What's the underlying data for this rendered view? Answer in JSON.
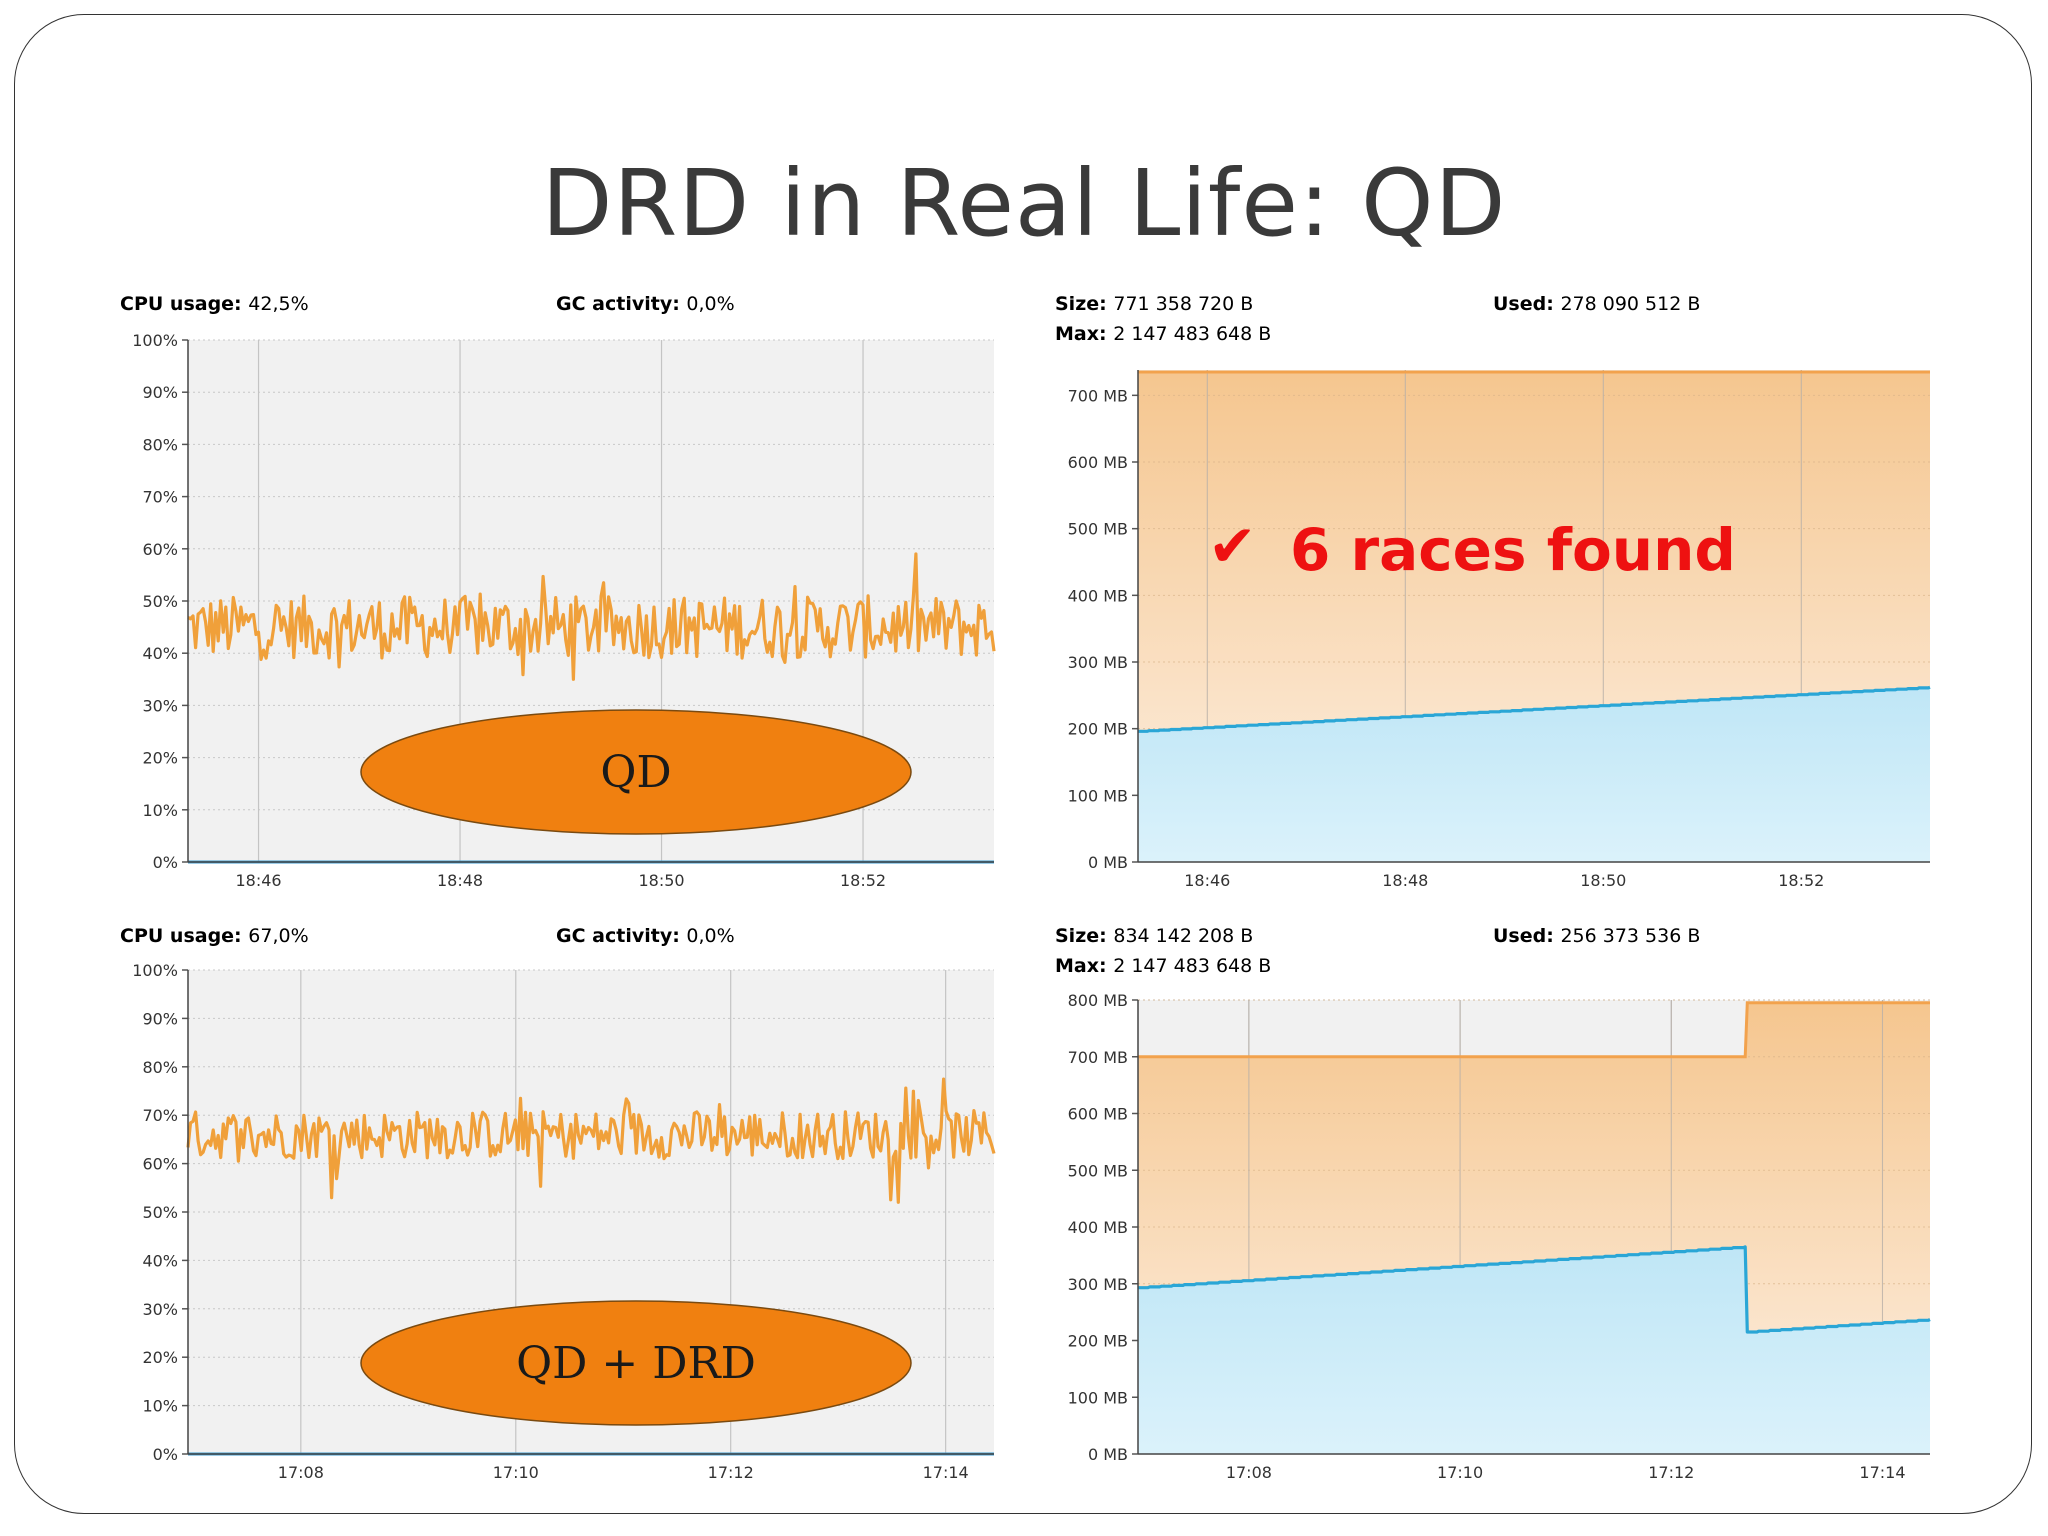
{
  "slide": {
    "title": "DRD in Real Life: QD"
  },
  "colors": {
    "cpu_line": "#f0a03a",
    "gc_line": "#3a9ad0",
    "heap_size_line": "#f2a24d",
    "heap_used_line": "#2aa6d6",
    "oval_fill": "#f08010",
    "annotation": "#ee1111"
  },
  "chart_data": [
    {
      "type": "line",
      "panel": "cpu",
      "header": [
        {
          "key": "CPU usage:",
          "value": "42,5%"
        },
        {
          "key": "GC activity:",
          "value": "0,0%"
        }
      ],
      "y_ticks": [
        "100%",
        "90%",
        "80%",
        "70%",
        "60%",
        "50%",
        "40%",
        "30%",
        "20%",
        "10%",
        "0%"
      ],
      "ylim": [
        0,
        100
      ],
      "x_ticks": [
        "18:46",
        "18:48",
        "18:50",
        "18:52"
      ],
      "x_tick_minutes": [
        1126,
        1128,
        1130,
        1132
      ],
      "xlim": [
        1125.3,
        1133.3
      ],
      "series": [
        {
          "name": "CPU usage",
          "mean": 45,
          "amplitude": 6,
          "min": 35,
          "max": 59
        },
        {
          "name": "GC activity",
          "value": 0
        }
      ],
      "callout": "QD"
    },
    {
      "type": "area",
      "panel": "heap",
      "header": [
        {
          "key": "Size:",
          "value": "771 358 720 B"
        },
        {
          "key": "Used:",
          "value": "278 090 512 B"
        },
        {
          "key": "Max:",
          "value": "2 147 483 648 B"
        }
      ],
      "y_ticks": [
        "700 MB",
        "600 MB",
        "500 MB",
        "400 MB",
        "300 MB",
        "200 MB",
        "100 MB",
        "0 MB"
      ],
      "y_tick_values": [
        700,
        600,
        500,
        400,
        300,
        200,
        100,
        0
      ],
      "ylim": [
        0,
        738
      ],
      "x_ticks": [
        "18:46",
        "18:48",
        "18:50",
        "18:52"
      ],
      "x_tick_minutes": [
        1126,
        1128,
        1130,
        1132
      ],
      "xlim": [
        1125.3,
        1133.3
      ],
      "series": [
        {
          "name": "Size",
          "points": [
            [
              1125.3,
              735
            ],
            [
              1133.3,
              735
            ]
          ]
        },
        {
          "name": "Used",
          "points": [
            [
              1125.3,
              196
            ],
            [
              1133.3,
              262
            ]
          ]
        }
      ],
      "annotation": {
        "mark": "✔",
        "text": "6 races found"
      }
    },
    {
      "type": "line",
      "panel": "cpu",
      "header": [
        {
          "key": "CPU usage:",
          "value": "67,0%"
        },
        {
          "key": "GC activity:",
          "value": "0,0%"
        }
      ],
      "y_ticks": [
        "100%",
        "90%",
        "80%",
        "70%",
        "60%",
        "50%",
        "40%",
        "30%",
        "20%",
        "10%",
        "0%"
      ],
      "ylim": [
        0,
        100
      ],
      "x_ticks": [
        "17:08",
        "17:10",
        "17:12",
        "17:14"
      ],
      "x_tick_minutes": [
        1028,
        1030,
        1032,
        1034
      ],
      "xlim": [
        1026.95,
        1034.45
      ],
      "series": [
        {
          "name": "CPU usage",
          "mean": 66,
          "amplitude": 5,
          "min": 52,
          "max": 78
        },
        {
          "name": "GC activity",
          "value": 0
        }
      ],
      "callout": "QD + DRD"
    },
    {
      "type": "area",
      "panel": "heap",
      "header": [
        {
          "key": "Size:",
          "value": "834 142 208 B"
        },
        {
          "key": "Used:",
          "value": "256 373 536 B"
        },
        {
          "key": "Max:",
          "value": "2 147 483 648 B"
        }
      ],
      "y_ticks": [
        "800 MB",
        "700 MB",
        "600 MB",
        "500 MB",
        "400 MB",
        "300 MB",
        "200 MB",
        "100 MB",
        "0 MB"
      ],
      "y_tick_values": [
        800,
        700,
        600,
        500,
        400,
        300,
        200,
        100,
        0
      ],
      "ylim": [
        0,
        800
      ],
      "x_ticks": [
        "17:08",
        "17:10",
        "17:12",
        "17:14"
      ],
      "x_tick_minutes": [
        1028,
        1030,
        1032,
        1034
      ],
      "xlim": [
        1026.95,
        1034.45
      ],
      "series": [
        {
          "name": "Size",
          "points": [
            [
              1026.95,
              700
            ],
            [
              1032.7,
              700
            ],
            [
              1032.72,
              795
            ],
            [
              1034.45,
              795
            ]
          ]
        },
        {
          "name": "Used",
          "points": [
            [
              1026.95,
              293
            ],
            [
              1032.7,
              365
            ],
            [
              1032.72,
              215
            ],
            [
              1034.45,
              237
            ]
          ]
        }
      ]
    }
  ]
}
